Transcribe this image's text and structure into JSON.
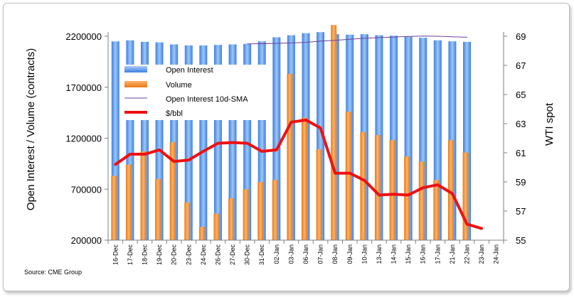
{
  "chart_data": {
    "type": "bar",
    "categories": [
      "16-Dec",
      "17-Dec",
      "18-Dec",
      "19-Dec",
      "20-Dec",
      "23-Dec",
      "24-Dec",
      "26-Dec",
      "27-Dec",
      "30-Dec",
      "31-Dec",
      "02-Jan",
      "03-Jan",
      "06-Jan",
      "07-Jan",
      "08-Jan",
      "09-Jan",
      "10-Jan",
      "13-Jan",
      "14-Jan",
      "15-Jan",
      "16-Jan",
      "17-Jan",
      "21-Jan",
      "22-Jan",
      "23-Jan",
      "24-Jan"
    ],
    "series": [
      {
        "name": "Open Interest",
        "kind": "bar",
        "axis": "left",
        "color": "#6fa8ef",
        "values": [
          2150000,
          2160000,
          2145000,
          2140000,
          2120000,
          2110000,
          2110000,
          2115000,
          2120000,
          2125000,
          2150000,
          2190000,
          2210000,
          2230000,
          2240000,
          2220000,
          2215000,
          2220000,
          2210000,
          2205000,
          2195000,
          2185000,
          2160000,
          2150000,
          2145000,
          null,
          null
        ]
      },
      {
        "name": "Volume",
        "kind": "bar",
        "axis": "left",
        "color": "#f5922f",
        "values": [
          830000,
          940000,
          1070000,
          800000,
          1160000,
          570000,
          330000,
          460000,
          610000,
          700000,
          770000,
          790000,
          1830000,
          1400000,
          1090000,
          2310000,
          1460000,
          1260000,
          1230000,
          1180000,
          1020000,
          970000,
          790000,
          1180000,
          1060000,
          null,
          null
        ]
      },
      {
        "name": "Open Interest 10d-SMA",
        "kind": "line",
        "axis": "left",
        "color": "#6f3f9e",
        "values": [
          null,
          null,
          null,
          null,
          null,
          null,
          null,
          null,
          null,
          2125000,
          2127000,
          2130000,
          2135000,
          2140000,
          2152000,
          2160000,
          2170000,
          2180000,
          2187000,
          2192000,
          2198000,
          2202000,
          2200000,
          2195000,
          2190000,
          null,
          null
        ]
      },
      {
        "name": "$/bbl",
        "kind": "line",
        "axis": "right",
        "color": "#ee1111",
        "values": [
          60.2,
          60.9,
          60.9,
          61.2,
          60.4,
          60.5,
          61.1,
          61.65,
          61.7,
          61.65,
          61.1,
          61.2,
          63.1,
          63.25,
          62.7,
          59.6,
          59.6,
          59.1,
          58.1,
          58.15,
          58.1,
          58.6,
          58.8,
          58.2,
          56.1,
          55.8,
          null
        ]
      }
    ],
    "ylabel": "Open Interest / Volume (contracts)",
    "ylabel_right": "WTI spot",
    "ylim": [
      200000,
      2200000
    ],
    "ylim_right": [
      55,
      69
    ],
    "y_ticks": [
      "2200000",
      "1700000",
      "1200000",
      "700000",
      "200000"
    ],
    "y_right_ticks": [
      "69",
      "67",
      "65",
      "63",
      "61",
      "59",
      "57",
      "55"
    ],
    "grid": false,
    "legend_position": "upper-left, inside plot",
    "annotation": "Source: CME Group"
  }
}
